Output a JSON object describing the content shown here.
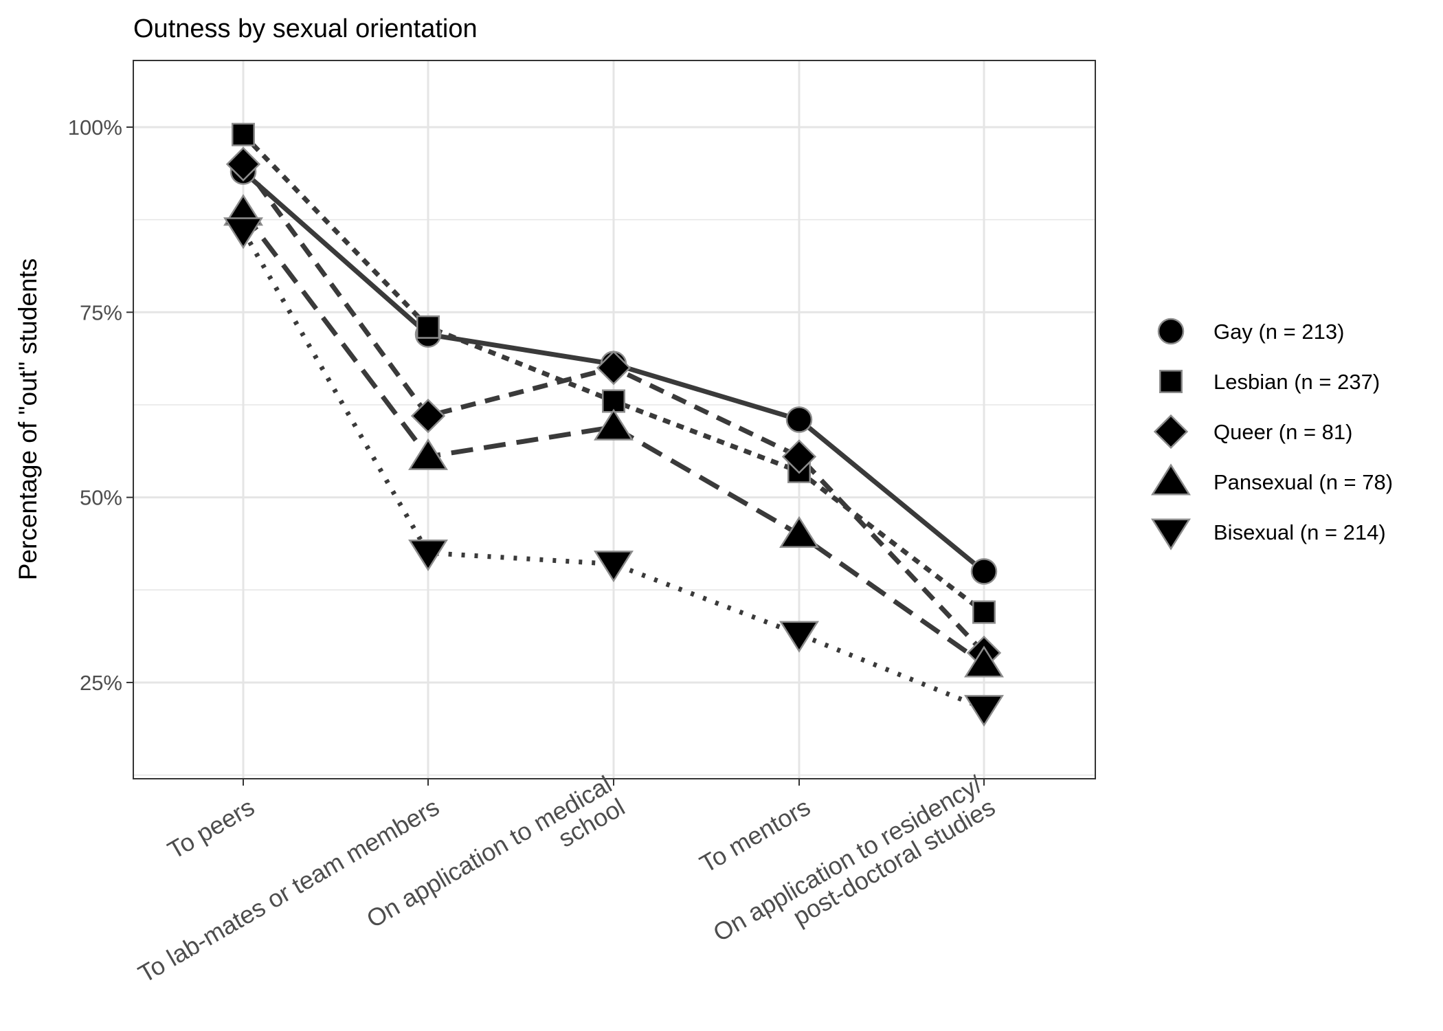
{
  "chart_data": {
    "type": "line",
    "title": "Outness by sexual orientation",
    "xlabel": "",
    "ylabel": "Percentage of \"out\" students",
    "ylim": [
      0.12,
      1.09
    ],
    "yticks": [
      0.25,
      0.5,
      0.75,
      1.0
    ],
    "ytick_labels": [
      "25%",
      "50%",
      "75%",
      "100%"
    ],
    "categories": [
      [
        "To peers"
      ],
      [
        "To lab-mates or team members"
      ],
      [
        "On application to medical",
        "school"
      ],
      [
        "To mentors"
      ],
      [
        "On application to residency/",
        "post-doctoral studies"
      ]
    ],
    "grid": true,
    "legend_position": "right",
    "series": [
      {
        "name": "Gay (n = 213)",
        "marker": "circle",
        "linestyle": "solid",
        "values": [
          0.94,
          0.72,
          0.68,
          0.605,
          0.4
        ]
      },
      {
        "name": "Lesbian (n = 237)",
        "marker": "square",
        "linestyle": "short-dash",
        "values": [
          0.99,
          0.73,
          0.63,
          0.535,
          0.345
        ]
      },
      {
        "name": "Queer (n = 81)",
        "marker": "diamond",
        "linestyle": "dash",
        "values": [
          0.95,
          0.61,
          0.675,
          0.555,
          0.29
        ]
      },
      {
        "name": "Pansexual (n = 78)",
        "marker": "triangle-up",
        "linestyle": "long-dash",
        "values": [
          0.885,
          0.555,
          0.595,
          0.45,
          0.275
        ]
      },
      {
        "name": "Bisexual (n = 214)",
        "marker": "triangle-down",
        "linestyle": "dotted",
        "values": [
          0.86,
          0.425,
          0.41,
          0.315,
          0.215
        ]
      }
    ],
    "colors": {
      "line": "#3a3a3a",
      "marker_fill": "#000000",
      "marker_stroke": "#8c8c8c",
      "grid": "#e5e5e5",
      "panel_border": "#333333"
    }
  }
}
